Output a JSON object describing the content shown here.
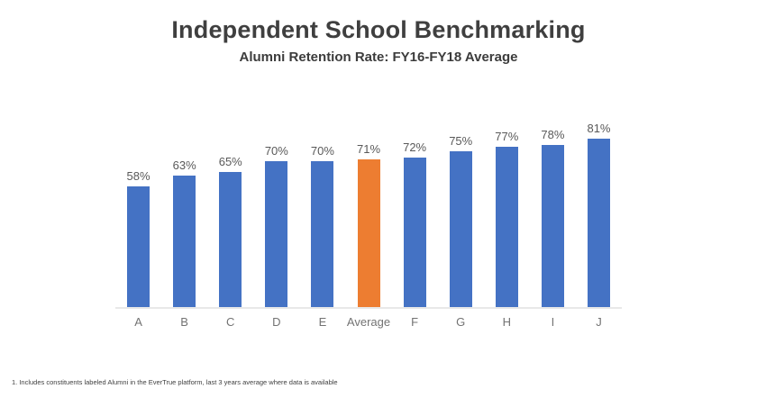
{
  "slide": {
    "title": "Independent School Benchmarking",
    "subtitle": "Alumni Retention Rate: FY16-FY18 Average",
    "footnote": "1. Includes constituents labeled Alumni in the EverTrue platform, last 3 years average where data is available"
  },
  "chart_data": {
    "type": "bar",
    "title": "Independent School Benchmarking",
    "subtitle": "Alumni Retention Rate: FY16-FY18 Average",
    "categories": [
      "A",
      "B",
      "C",
      "D",
      "E",
      "Average",
      "F",
      "G",
      "H",
      "I",
      "J"
    ],
    "values": [
      58,
      63,
      65,
      70,
      70,
      71,
      72,
      75,
      77,
      78,
      81
    ],
    "value_labels": [
      "58%",
      "63%",
      "65%",
      "70%",
      "70%",
      "71%",
      "72%",
      "75%",
      "77%",
      "78%",
      "81%"
    ],
    "highlight_category": "Average",
    "bar_color": "#4472C4",
    "highlight_color": "#ED7D31",
    "axis_line_color": "#e8e8e8",
    "xlabel": "",
    "ylabel": "",
    "ylim": [
      0,
      90
    ],
    "grid": false,
    "legend": false,
    "data_labels": true
  }
}
